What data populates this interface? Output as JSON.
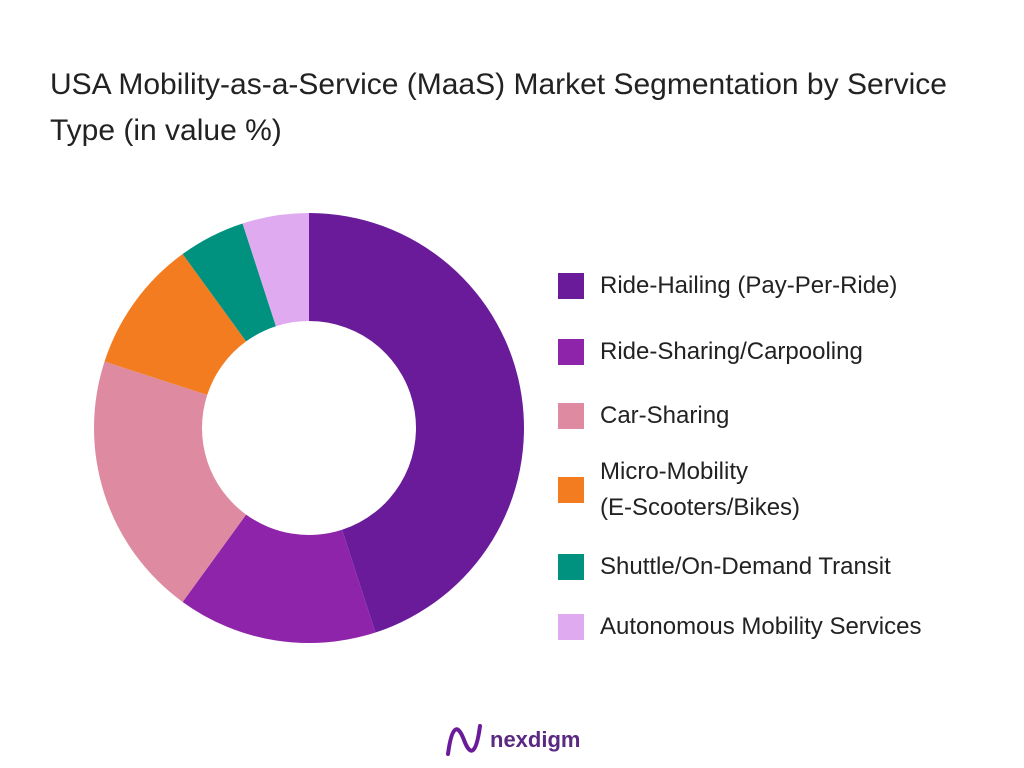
{
  "chart_data": {
    "type": "donut",
    "title": "USA Mobility-as-a-Service (MaaS) Market Segmentation by Service Type (in value %)",
    "categories": [
      "Ride-Hailing (Pay-Per-Ride)",
      "Ride-Sharing/Carpooling",
      "Car-Sharing",
      "Micro-Mobility\n(E-Scooters/Bikes)",
      "Shuttle/On-Demand Transit",
      "Autonomous Mobility Services"
    ],
    "values": [
      45,
      15,
      20,
      10,
      5,
      5
    ],
    "colors": [
      "#6a1b9a",
      "#8e24aa",
      "#de8aa0",
      "#f47c20",
      "#00927f",
      "#e0aaf0"
    ],
    "legend": "right"
  },
  "footer": {
    "logo": "nexdigm"
  }
}
